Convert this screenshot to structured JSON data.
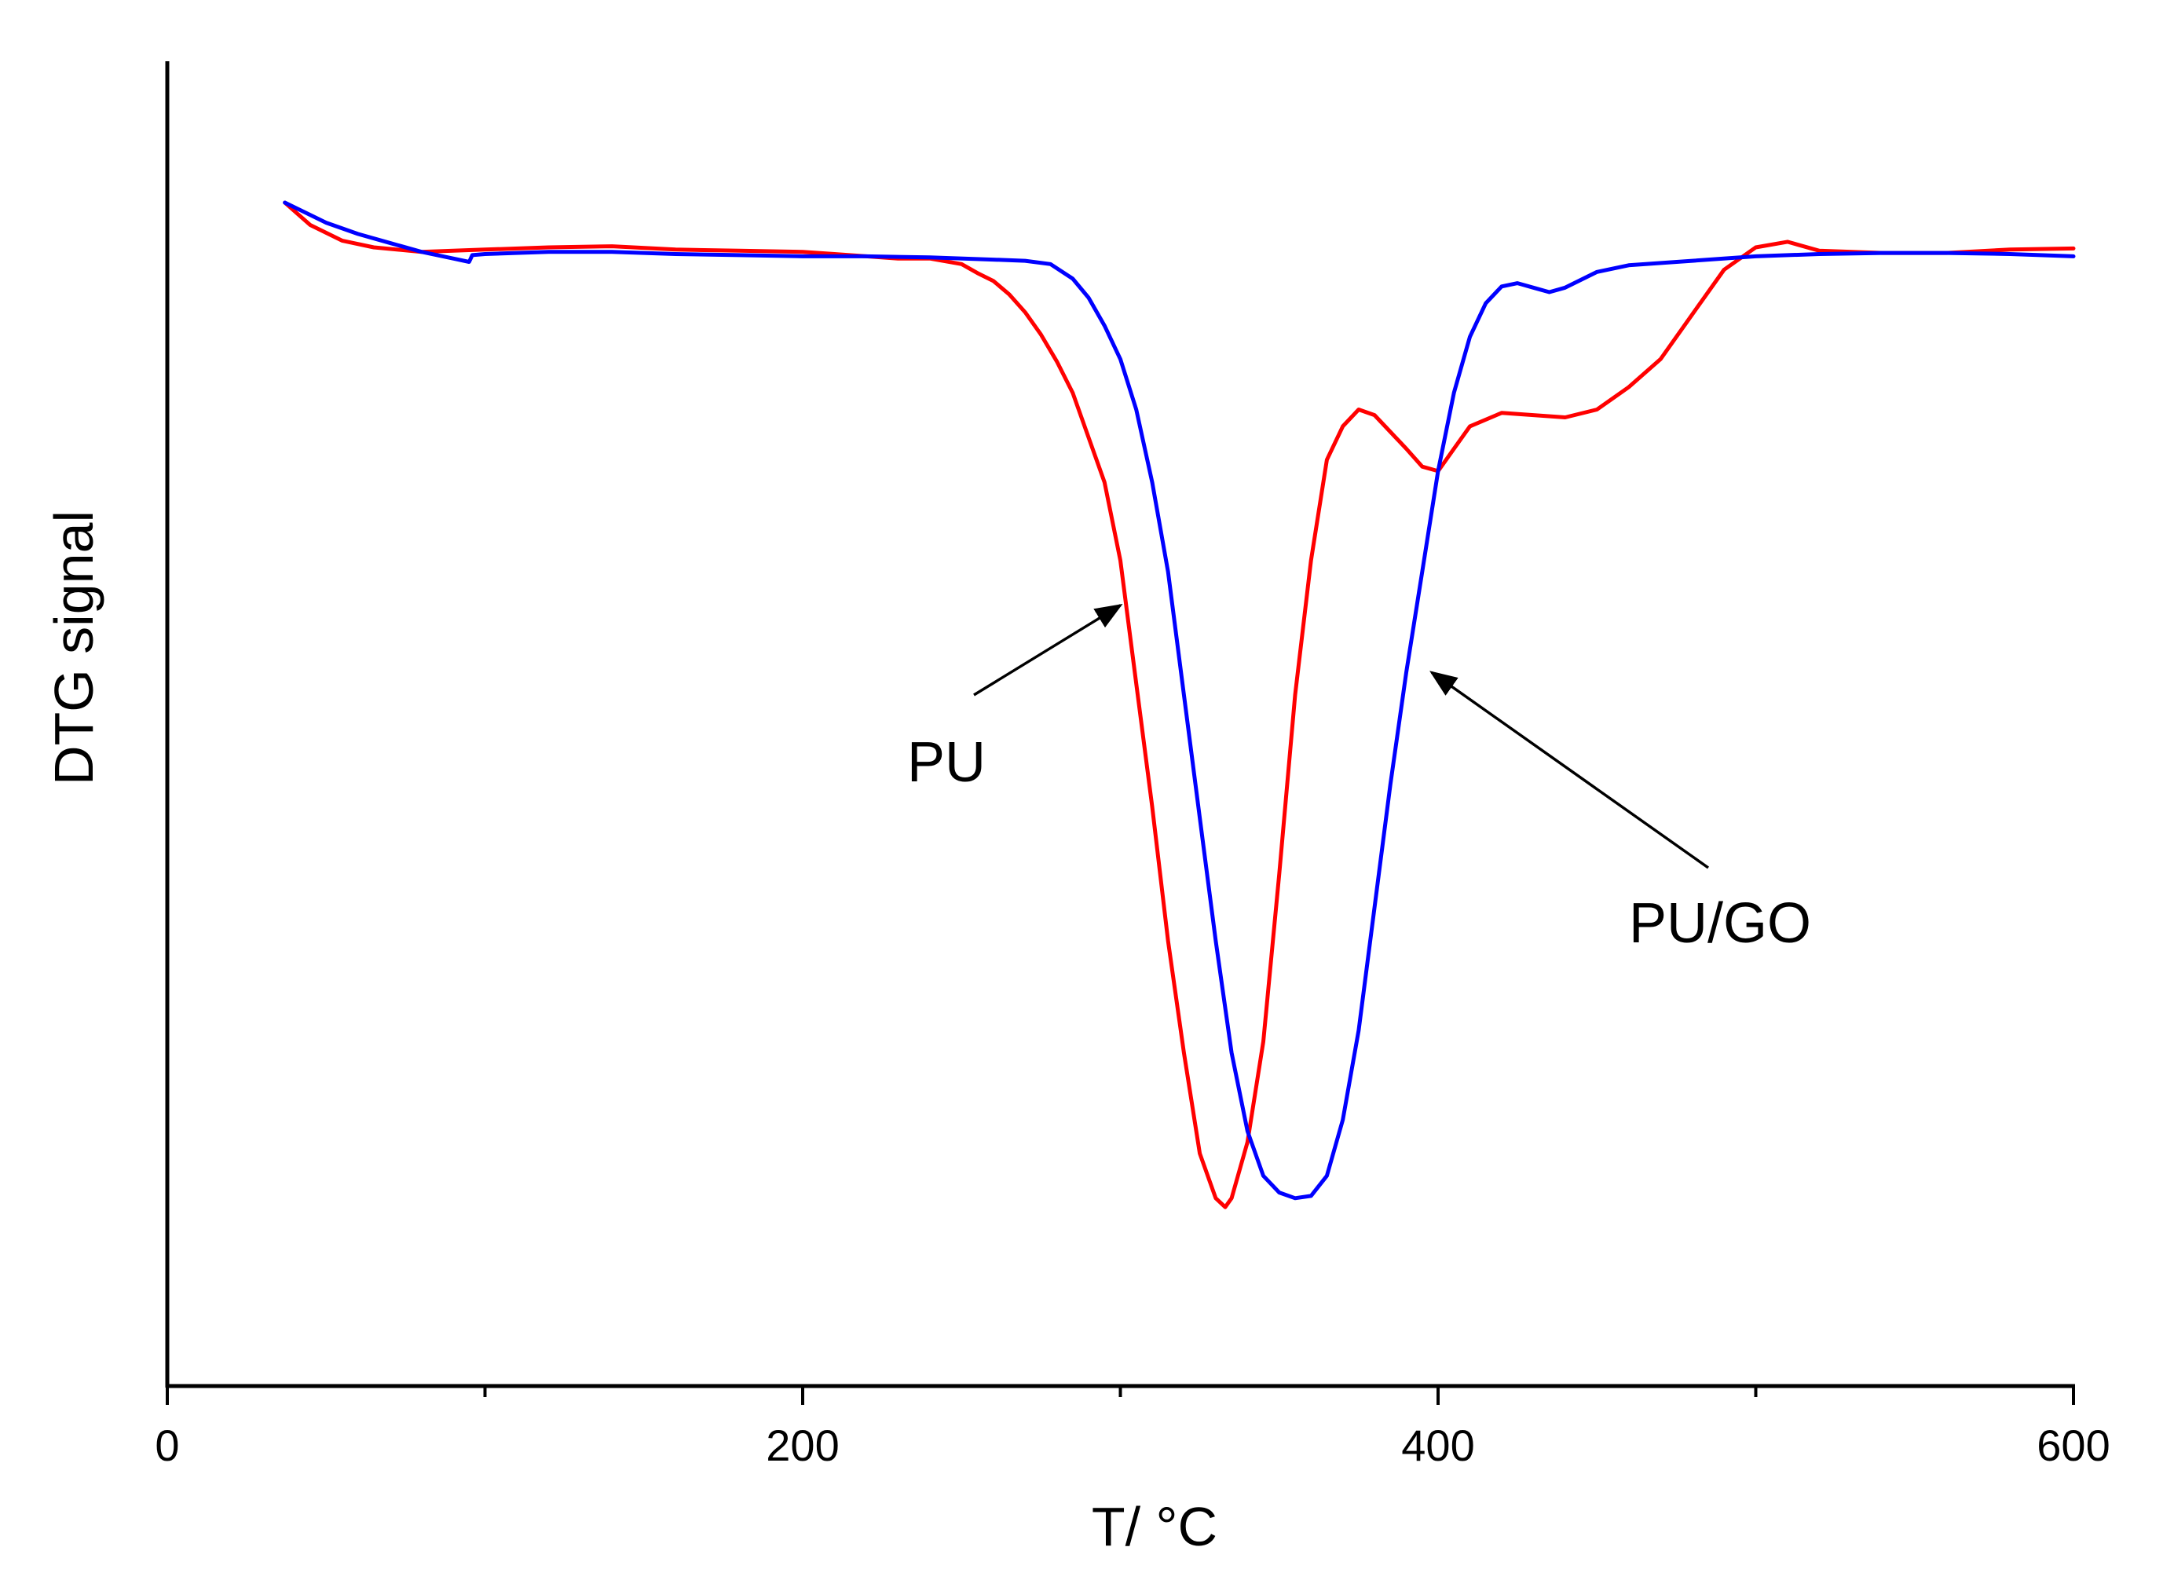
{
  "chart_data": {
    "type": "line",
    "title": "",
    "xlabel": "T/ °C",
    "ylabel": "DTG signal",
    "xlim": [
      0,
      600
    ],
    "ylim": [
      -1.0,
      0.07
    ],
    "x_ticks": [
      0,
      200,
      400,
      600
    ],
    "x_tick_labels": [
      "0",
      "200",
      "400",
      "600"
    ],
    "x_minor_ticks": [
      100,
      300,
      500
    ],
    "y_ticks_shown": false,
    "grid": false,
    "legend": "none",
    "series": [
      {
        "name": "PU",
        "color": "#ff0000",
        "points": [
          [
            37,
            0
          ],
          [
            45,
            -0.02
          ],
          [
            55,
            -0.034
          ],
          [
            65,
            -0.04
          ],
          [
            80,
            -0.044
          ],
          [
            100,
            -0.042
          ],
          [
            120,
            -0.04
          ],
          [
            140,
            -0.039
          ],
          [
            160,
            -0.042
          ],
          [
            180,
            -0.043
          ],
          [
            200,
            -0.044
          ],
          [
            210,
            -0.046
          ],
          [
            220,
            -0.048
          ],
          [
            230,
            -0.05
          ],
          [
            240,
            -0.05
          ],
          [
            250,
            -0.055
          ],
          [
            255,
            -0.063
          ],
          [
            260,
            -0.07
          ],
          [
            265,
            -0.082
          ],
          [
            270,
            -0.098
          ],
          [
            275,
            -0.118
          ],
          [
            280,
            -0.142
          ],
          [
            285,
            -0.17
          ],
          [
            290,
            -0.21
          ],
          [
            295,
            -0.25
          ],
          [
            300,
            -0.32
          ],
          [
            305,
            -0.43
          ],
          [
            310,
            -0.54
          ],
          [
            315,
            -0.66
          ],
          [
            320,
            -0.76
          ],
          [
            325,
            -0.85
          ],
          [
            330,
            -0.89
          ],
          [
            333,
            -0.898
          ],
          [
            335,
            -0.89
          ],
          [
            340,
            -0.84
          ],
          [
            345,
            -0.75
          ],
          [
            350,
            -0.6
          ],
          [
            355,
            -0.44
          ],
          [
            360,
            -0.32
          ],
          [
            365,
            -0.23
          ],
          [
            370,
            -0.2
          ],
          [
            375,
            -0.185
          ],
          [
            380,
            -0.19
          ],
          [
            385,
            -0.205
          ],
          [
            390,
            -0.22
          ],
          [
            395,
            -0.236
          ],
          [
            400,
            -0.24
          ],
          [
            405,
            -0.22
          ],
          [
            410,
            -0.2
          ],
          [
            420,
            -0.188
          ],
          [
            430,
            -0.19
          ],
          [
            440,
            -0.192
          ],
          [
            450,
            -0.185
          ],
          [
            460,
            -0.165
          ],
          [
            470,
            -0.14
          ],
          [
            480,
            -0.1
          ],
          [
            490,
            -0.06
          ],
          [
            500,
            -0.04
          ],
          [
            510,
            -0.035
          ],
          [
            520,
            -0.043
          ],
          [
            540,
            -0.045
          ],
          [
            560,
            -0.045
          ],
          [
            580,
            -0.042
          ],
          [
            600,
            -0.041
          ]
        ]
      },
      {
        "name": "PU/GO",
        "color": "#0000ff",
        "points": [
          [
            37,
            0
          ],
          [
            50,
            -0.018
          ],
          [
            60,
            -0.028
          ],
          [
            70,
            -0.036
          ],
          [
            80,
            -0.044
          ],
          [
            90,
            -0.05
          ],
          [
            95,
            -0.053
          ],
          [
            96,
            -0.047
          ],
          [
            100,
            -0.046
          ],
          [
            120,
            -0.044
          ],
          [
            140,
            -0.044
          ],
          [
            160,
            -0.046
          ],
          [
            180,
            -0.047
          ],
          [
            200,
            -0.048
          ],
          [
            220,
            -0.048
          ],
          [
            240,
            -0.049
          ],
          [
            260,
            -0.051
          ],
          [
            270,
            -0.052
          ],
          [
            278,
            -0.055
          ],
          [
            285,
            -0.068
          ],
          [
            290,
            -0.085
          ],
          [
            295,
            -0.11
          ],
          [
            300,
            -0.14
          ],
          [
            305,
            -0.185
          ],
          [
            310,
            -0.25
          ],
          [
            315,
            -0.33
          ],
          [
            320,
            -0.44
          ],
          [
            325,
            -0.55
          ],
          [
            330,
            -0.66
          ],
          [
            335,
            -0.76
          ],
          [
            340,
            -0.83
          ],
          [
            345,
            -0.87
          ],
          [
            350,
            -0.885
          ],
          [
            355,
            -0.89
          ],
          [
            360,
            -0.888
          ],
          [
            365,
            -0.87
          ],
          [
            370,
            -0.82
          ],
          [
            375,
            -0.74
          ],
          [
            380,
            -0.63
          ],
          [
            385,
            -0.52
          ],
          [
            390,
            -0.42
          ],
          [
            395,
            -0.33
          ],
          [
            400,
            -0.24
          ],
          [
            405,
            -0.17
          ],
          [
            410,
            -0.12
          ],
          [
            415,
            -0.09
          ],
          [
            420,
            -0.075
          ],
          [
            425,
            -0.072
          ],
          [
            430,
            -0.076
          ],
          [
            435,
            -0.08
          ],
          [
            440,
            -0.076
          ],
          [
            450,
            -0.062
          ],
          [
            460,
            -0.056
          ],
          [
            480,
            -0.052
          ],
          [
            500,
            -0.048
          ],
          [
            520,
            -0.046
          ],
          [
            540,
            -0.045
          ],
          [
            560,
            -0.045
          ],
          [
            580,
            -0.046
          ],
          [
            600,
            -0.048
          ]
        ]
      }
    ],
    "annotations": [
      {
        "text": "PU",
        "target_series": "PU",
        "arrow_to": [
          300,
          -0.36
        ]
      },
      {
        "text": "PU/GO",
        "target_series": "PU/GO",
        "arrow_to": [
          398,
          -0.42
        ]
      }
    ]
  }
}
